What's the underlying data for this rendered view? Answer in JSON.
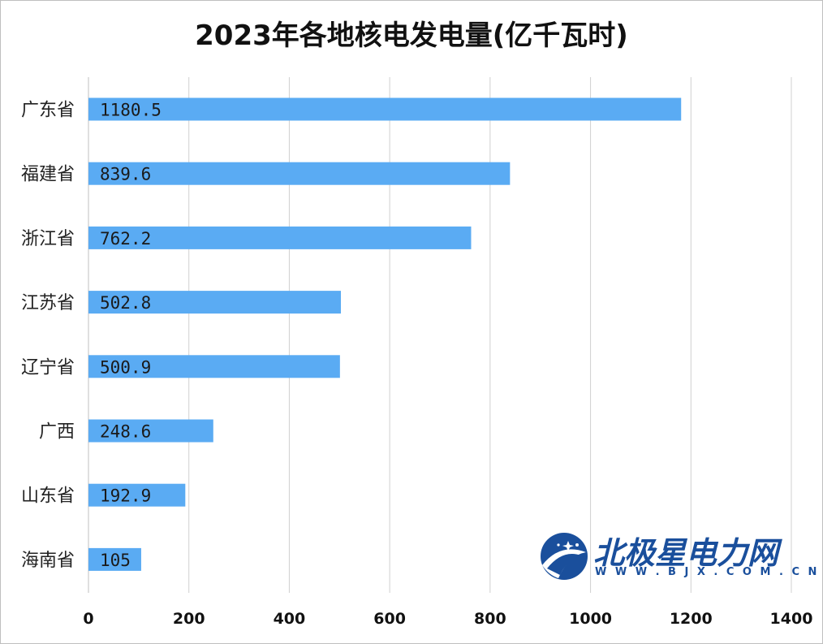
{
  "chart_data": {
    "type": "bar",
    "orientation": "horizontal",
    "title": "2023年各地核电发电量(亿千瓦时)",
    "categories": [
      "广东省",
      "福建省",
      "浙江省",
      "江苏省",
      "辽宁省",
      "广西",
      "山东省",
      "海南省"
    ],
    "values": [
      1180.5,
      839.6,
      762.2,
      502.8,
      500.9,
      248.6,
      192.9,
      105
    ],
    "value_labels": [
      "1180.5",
      "839.6",
      "762.2",
      "502.8",
      "500.9",
      "248.6",
      "192.9",
      "105"
    ],
    "xlim": [
      0,
      1400
    ],
    "xticks": [
      0,
      200,
      400,
      600,
      800,
      1000,
      1200,
      1400
    ],
    "grid": "vertical",
    "legend": "none",
    "bar_color": "#5aabf3",
    "grid_color": "#d0d0d0"
  },
  "watermark": {
    "brand": "北极星电力网",
    "url": "W W W . B J X . C O M . C N",
    "brand_color": "#1a4f9c",
    "icon": "polaris-logo-icon"
  }
}
